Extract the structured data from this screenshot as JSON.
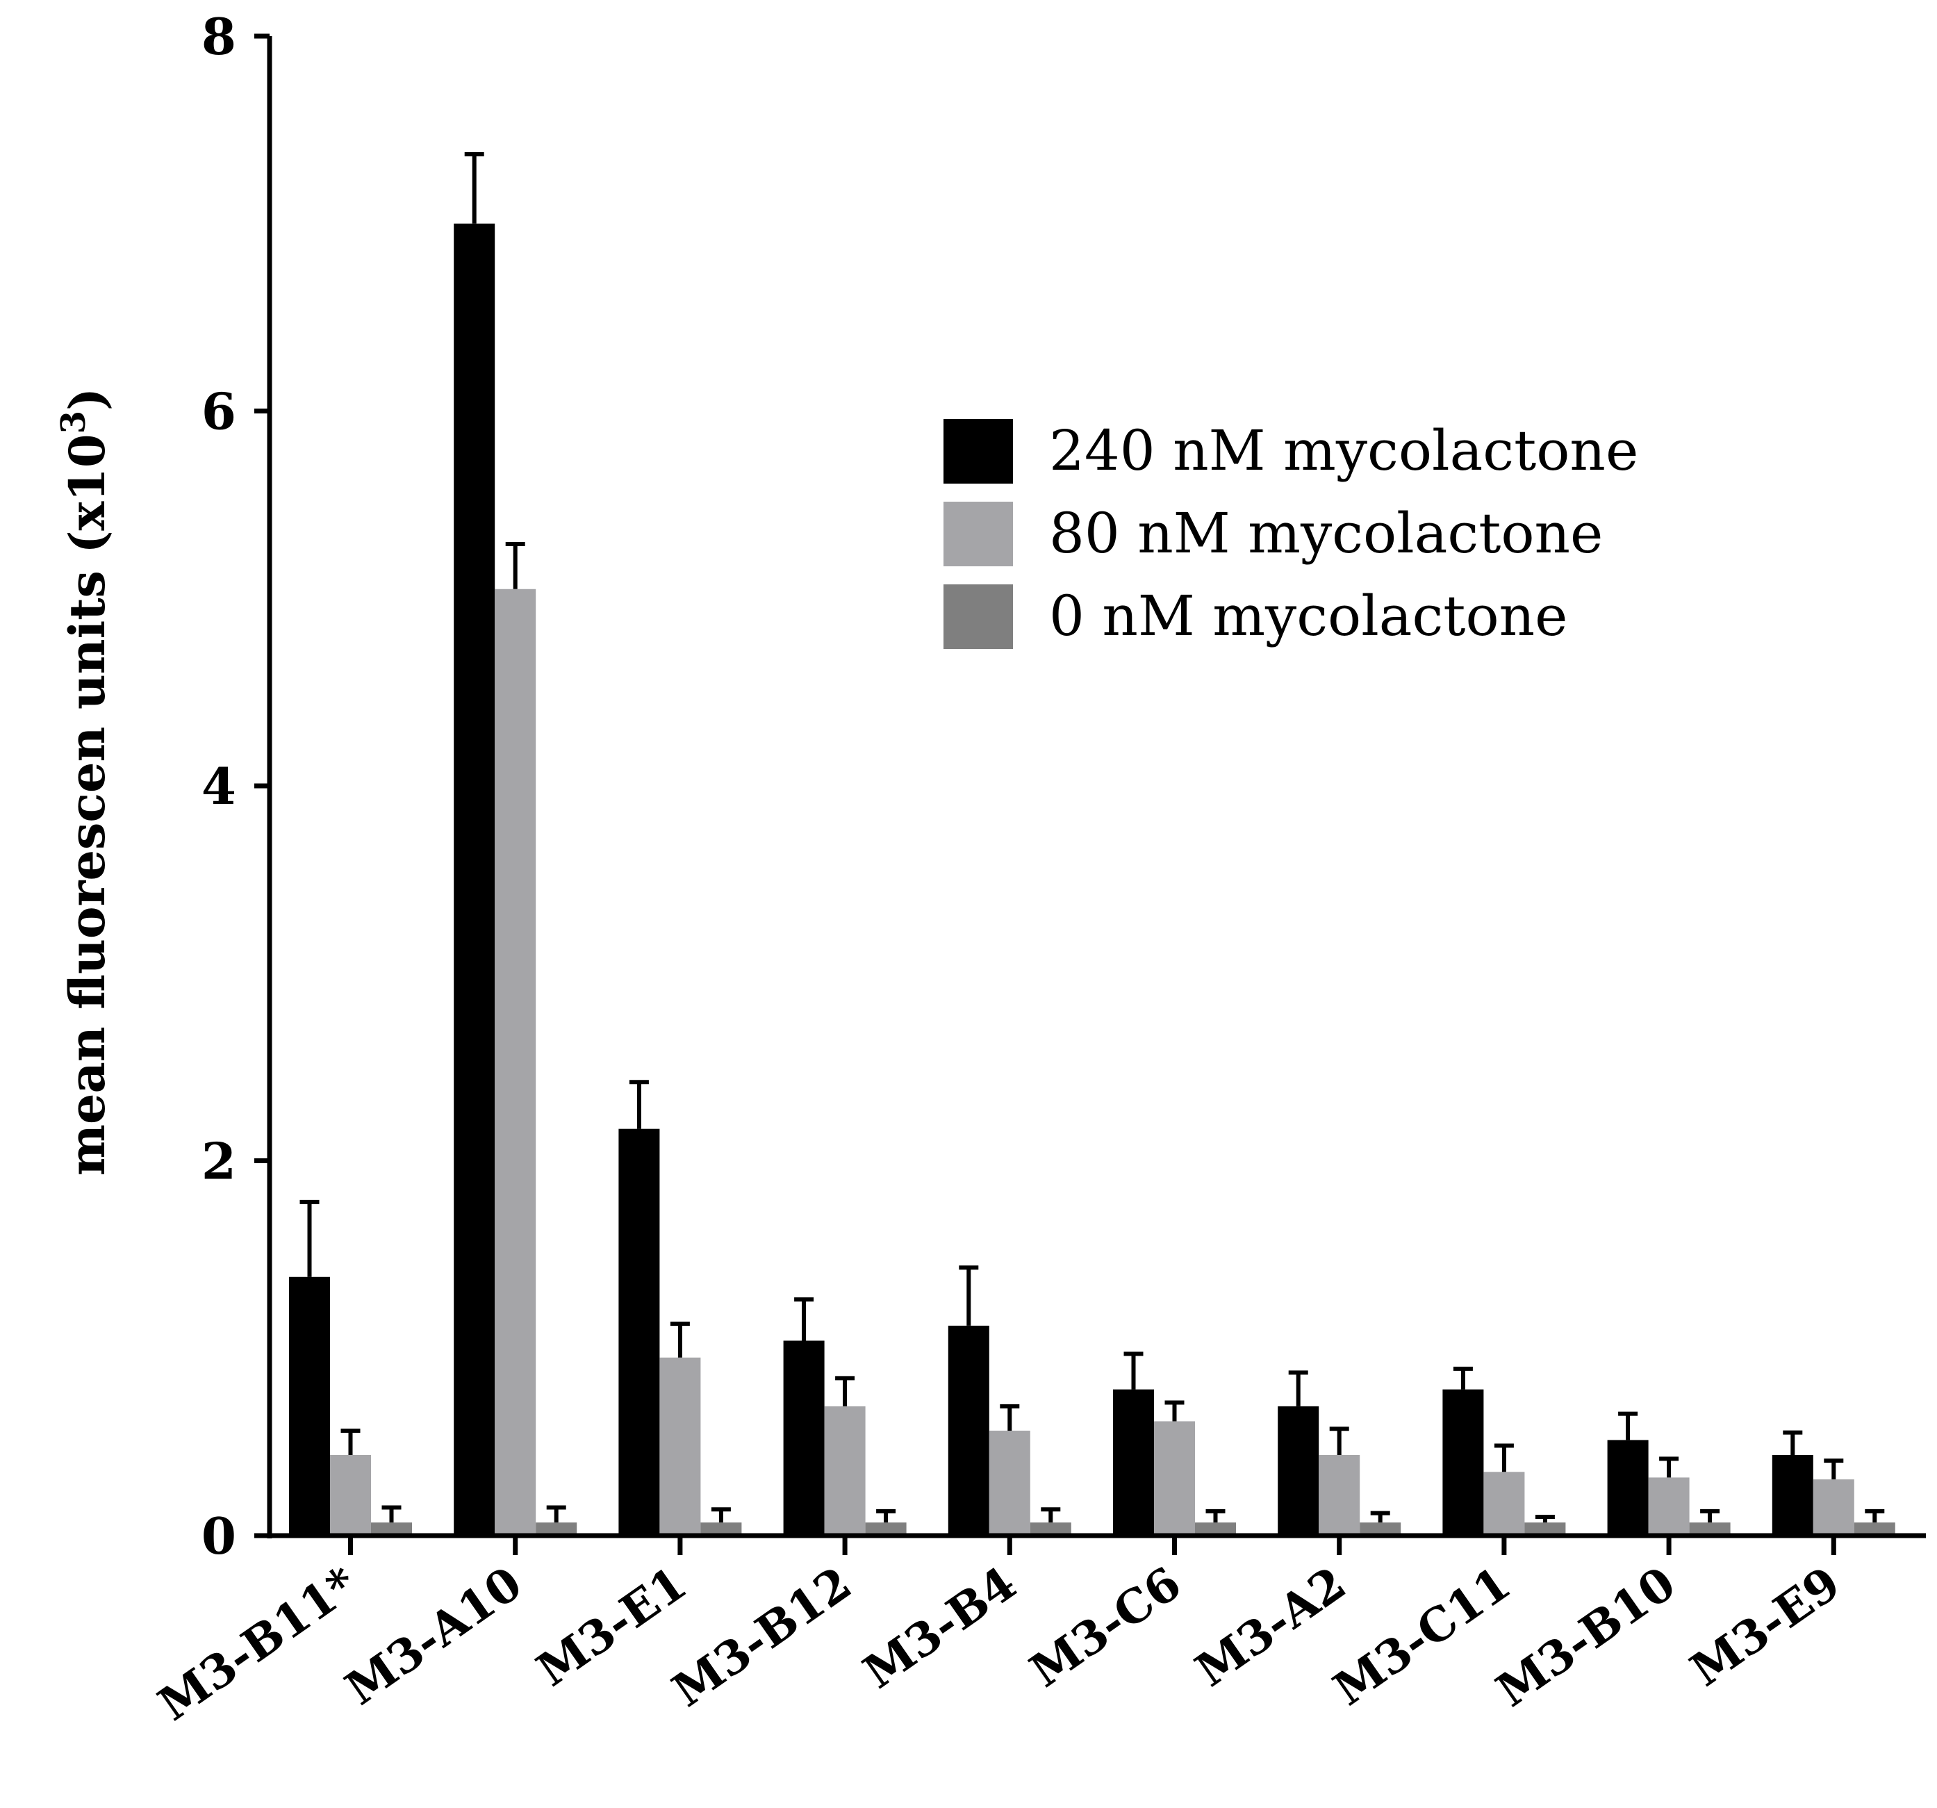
{
  "chart_data": {
    "type": "bar",
    "ylabel": "mean fluorescen units (x10",
    "ylabel_superscript": "3",
    "ylabel_close": ")",
    "xlabel": "",
    "ylim": [
      0,
      8
    ],
    "yticks": [
      "0",
      "2",
      "4",
      "6",
      "8"
    ],
    "grid": false,
    "legend_position": "top-right",
    "categories": [
      "M3-B11*",
      "M3-A10",
      "M3-E1",
      "M3-B12",
      "M3-B4",
      "M3-C6",
      "M3-A2",
      "M3-C11",
      "M3-B10",
      "M3-E9"
    ],
    "series": [
      {
        "name": "240 nM mycolactone",
        "color": "#000000",
        "values": [
          1.38,
          7.0,
          2.17,
          1.04,
          1.12,
          0.78,
          0.69,
          0.78,
          0.51,
          0.43
        ],
        "errors": [
          0.4,
          0.37,
          0.25,
          0.22,
          0.31,
          0.19,
          0.18,
          0.11,
          0.14,
          0.12
        ]
      },
      {
        "name": "80 nM mycolactone",
        "color": "#a5a5a8",
        "values": [
          0.43,
          5.05,
          0.95,
          0.69,
          0.56,
          0.61,
          0.43,
          0.34,
          0.31,
          0.3
        ],
        "errors": [
          0.13,
          0.24,
          0.18,
          0.15,
          0.13,
          0.1,
          0.14,
          0.14,
          0.1,
          0.1
        ]
      },
      {
        "name": "0 nM mycolactone",
        "color": "#7f7f7f",
        "values": [
          0.07,
          0.07,
          0.07,
          0.07,
          0.07,
          0.07,
          0.07,
          0.07,
          0.07,
          0.07
        ],
        "errors": [
          0.08,
          0.08,
          0.07,
          0.06,
          0.07,
          0.06,
          0.05,
          0.03,
          0.06,
          0.06
        ]
      }
    ]
  }
}
